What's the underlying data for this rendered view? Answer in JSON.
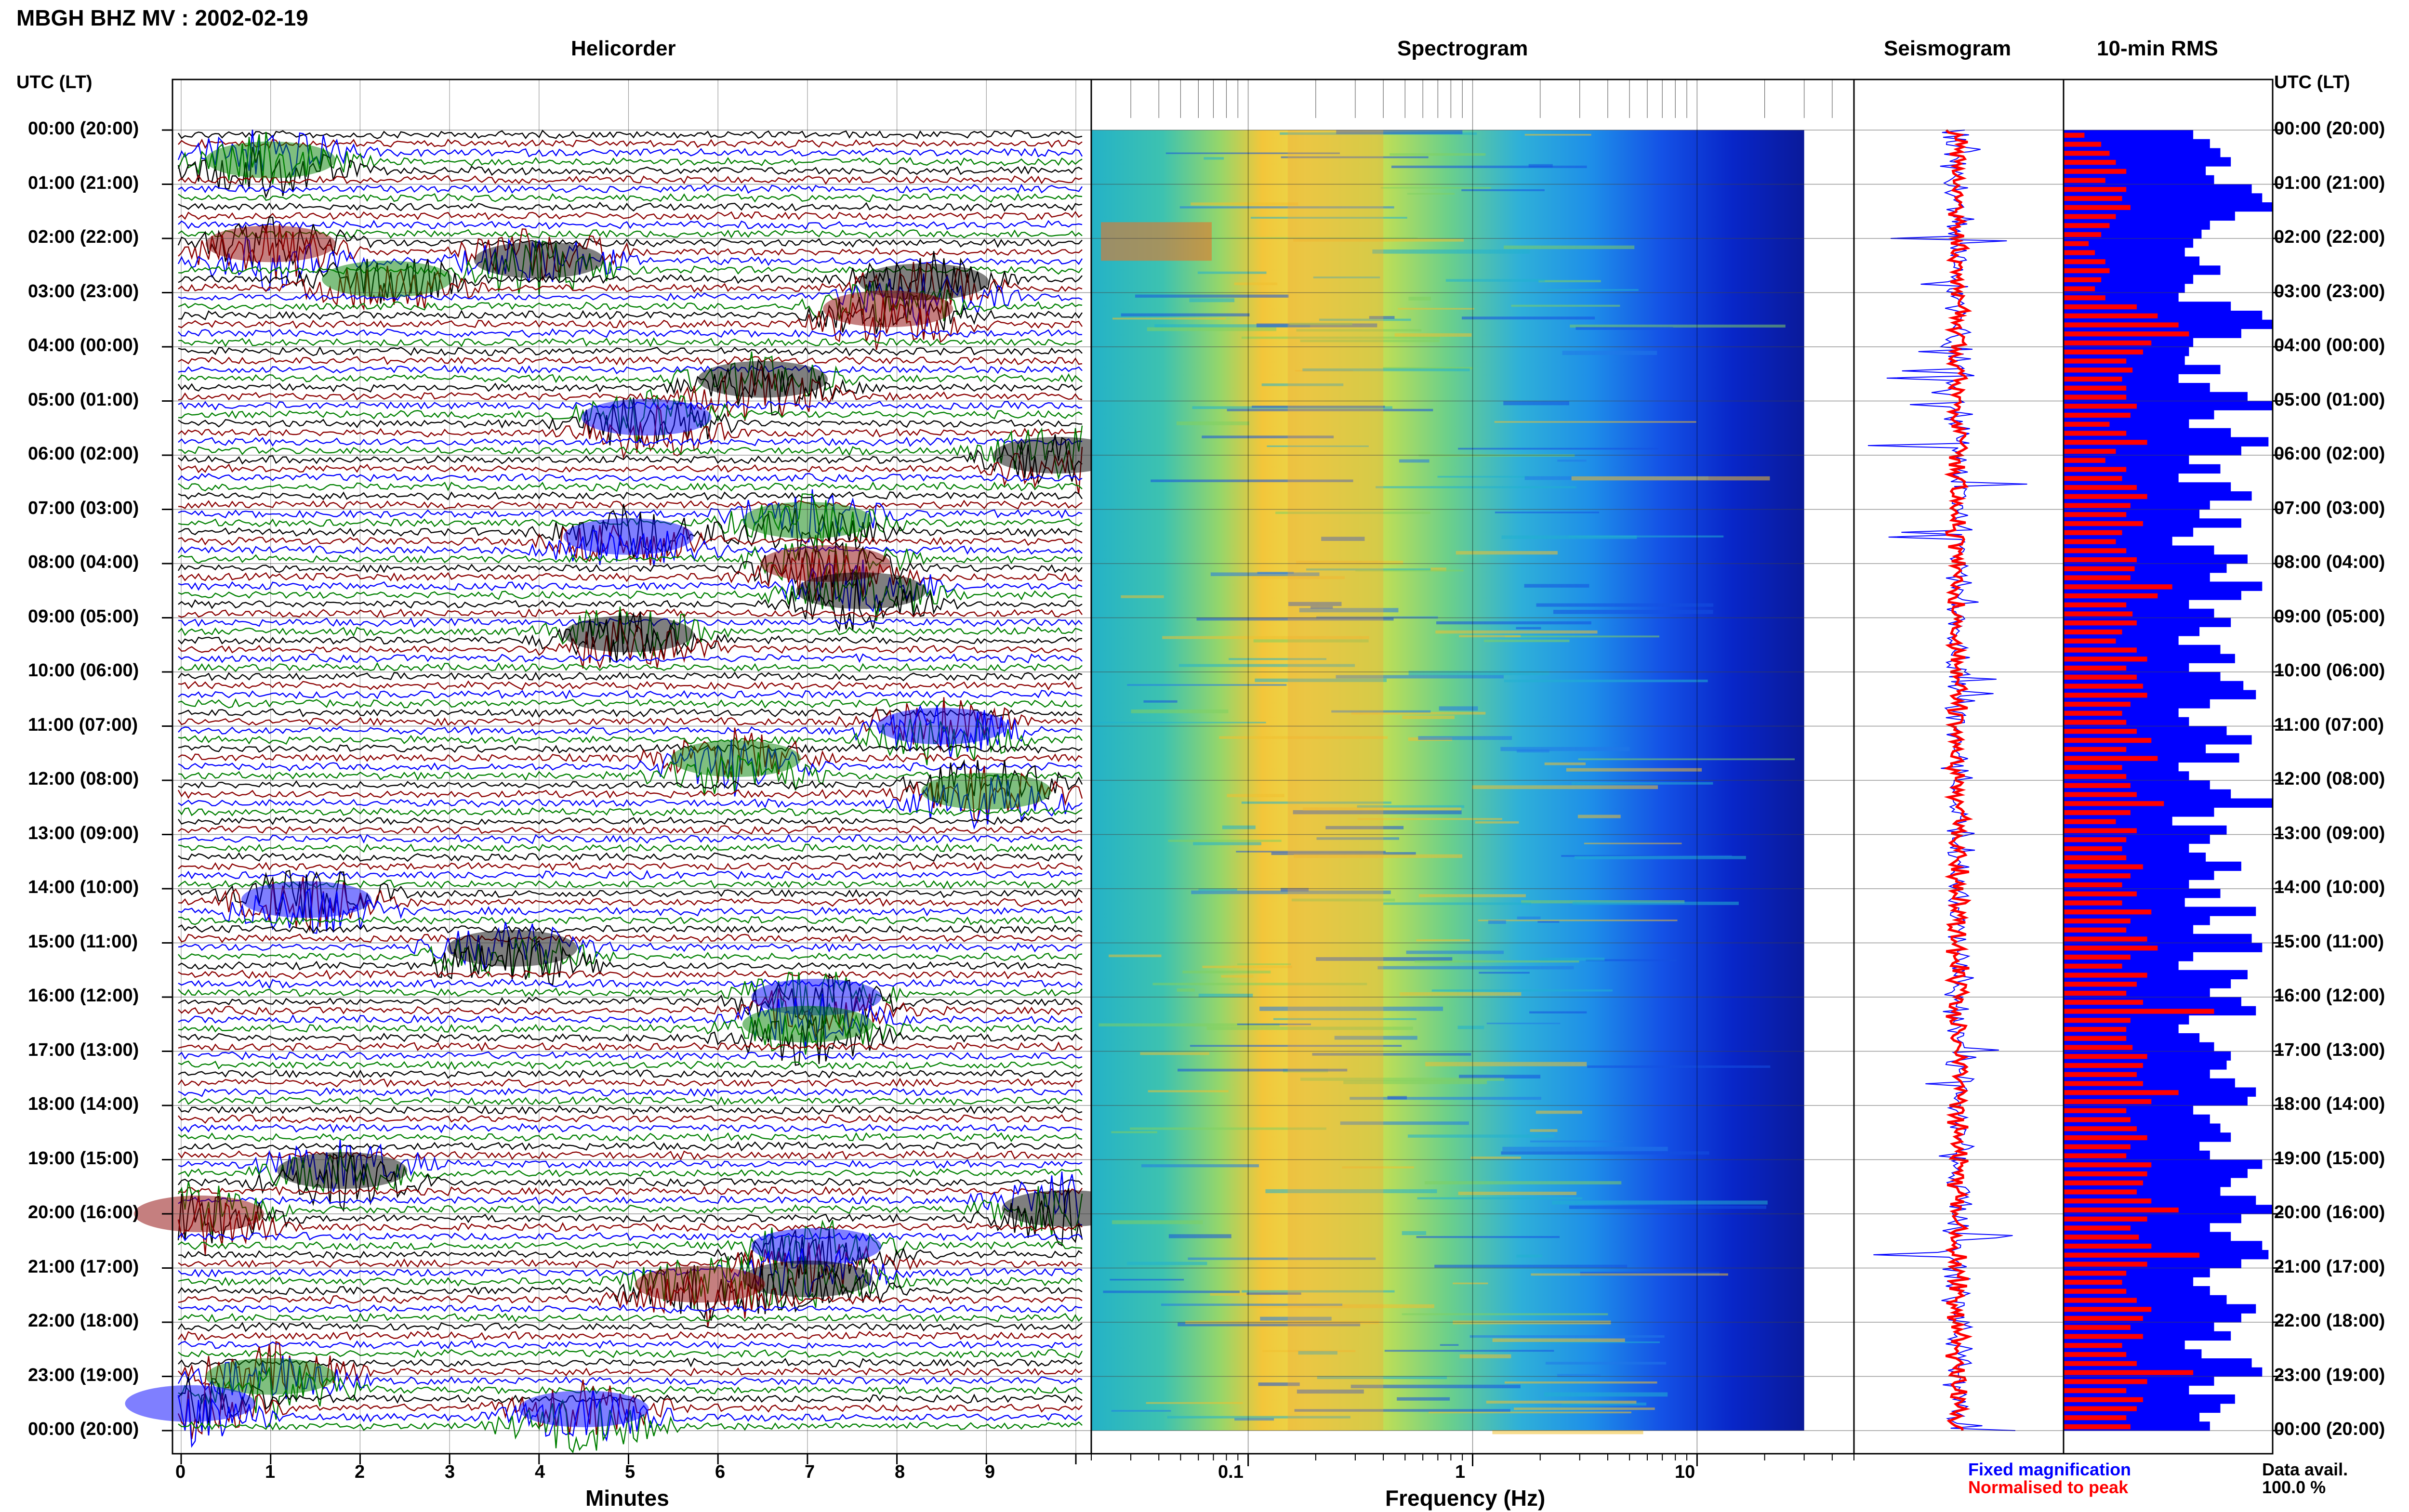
{
  "header": {
    "title": "MBGH BHZ MV : 2002-02-19"
  },
  "time_axis": {
    "label_left": "UTC (LT)",
    "label_right": "UTC (LT)",
    "rows": [
      "00:00 (20:00)",
      "01:00 (21:00)",
      "02:00 (22:00)",
      "03:00 (23:00)",
      "04:00 (00:00)",
      "05:00 (01:00)",
      "06:00 (02:00)",
      "07:00 (03:00)",
      "08:00 (04:00)",
      "09:00 (05:00)",
      "10:00 (06:00)",
      "11:00 (07:00)",
      "12:00 (08:00)",
      "13:00 (09:00)",
      "14:00 (10:00)",
      "15:00 (11:00)",
      "16:00 (12:00)",
      "17:00 (13:00)",
      "18:00 (14:00)",
      "19:00 (15:00)",
      "20:00 (16:00)",
      "21:00 (17:00)",
      "22:00 (18:00)",
      "23:00 (19:00)",
      "00:00 (20:00)"
    ]
  },
  "legend": {
    "fixed": "Fixed magnification",
    "normalised": "Normalised to peak",
    "avail_label": "Data avail.",
    "avail_value": "100.0 %"
  },
  "colors": {
    "fixed": "#0000ff",
    "normalised": "#ff0000",
    "trace_cycle": [
      "#000000",
      "#8b0000",
      "#0000ff",
      "#008000"
    ]
  },
  "chart_data": [
    {
      "type": "line",
      "title": "Helicorder",
      "xlabel": "Minutes",
      "x_ticks": [
        "0",
        "1",
        "2",
        "3",
        "4",
        "5",
        "6",
        "7",
        "8",
        "9"
      ],
      "xlim": [
        0,
        10
      ],
      "trace_count": 144,
      "events": [
        {
          "hour": 0.55,
          "minute": 1.0,
          "color": "green"
        },
        {
          "hour": 2.1,
          "minute": 1.0,
          "color": "darkred"
        },
        {
          "hour": 2.4,
          "minute": 4.0,
          "color": "black"
        },
        {
          "hour": 2.75,
          "minute": 2.3,
          "color": "green"
        },
        {
          "hour": 2.8,
          "minute": 8.3,
          "color": "black"
        },
        {
          "hour": 3.3,
          "minute": 7.9,
          "color": "darkred"
        },
        {
          "hour": 4.6,
          "minute": 6.5,
          "color": "black"
        },
        {
          "hour": 5.3,
          "minute": 5.2,
          "color": "blue"
        },
        {
          "hour": 6.0,
          "minute": 9.8,
          "color": "black"
        },
        {
          "hour": 7.2,
          "minute": 7.0,
          "color": "green"
        },
        {
          "hour": 7.5,
          "minute": 5.0,
          "color": "blue"
        },
        {
          "hour": 8.0,
          "minute": 7.2,
          "color": "darkred"
        },
        {
          "hour": 8.5,
          "minute": 7.6,
          "color": "black"
        },
        {
          "hour": 9.3,
          "minute": 5.0,
          "color": "black"
        },
        {
          "hour": 11.0,
          "minute": 8.5,
          "color": "blue"
        },
        {
          "hour": 11.6,
          "minute": 6.2,
          "color": "green"
        },
        {
          "hour": 12.2,
          "minute": 9.0,
          "color": "green"
        },
        {
          "hour": 14.2,
          "minute": 1.4,
          "color": "blue"
        },
        {
          "hour": 15.1,
          "minute": 3.7,
          "color": "black"
        },
        {
          "hour": 16.0,
          "minute": 7.1,
          "color": "blue"
        },
        {
          "hour": 16.5,
          "minute": 7.0,
          "color": "green"
        },
        {
          "hour": 19.2,
          "minute": 1.8,
          "color": "black"
        },
        {
          "hour": 19.9,
          "minute": 9.9,
          "color": "black"
        },
        {
          "hour": 20.0,
          "minute": 0.2,
          "color": "darkred"
        },
        {
          "hour": 20.6,
          "minute": 7.1,
          "color": "blue"
        },
        {
          "hour": 21.2,
          "minute": 7.0,
          "color": "black"
        },
        {
          "hour": 21.3,
          "minute": 5.8,
          "color": "darkred"
        },
        {
          "hour": 23.0,
          "minute": 1.0,
          "color": "green"
        },
        {
          "hour": 23.5,
          "minute": 0.1,
          "color": "blue"
        },
        {
          "hour": 23.6,
          "minute": 4.5,
          "color": "blue"
        }
      ]
    },
    {
      "type": "heatmap",
      "title": "Spectrogram",
      "xlabel": "Frequency (Hz)",
      "x_ticks": [
        "0.1",
        "1",
        "10"
      ],
      "x_scale": "log",
      "xlim": [
        0.02,
        50
      ],
      "peak_band_hz": [
        0.15,
        0.4
      ],
      "cutoff_hz": 30
    },
    {
      "type": "line",
      "title": "Seismogram",
      "series": [
        {
          "name": "Fixed magnification",
          "color": "#0000ff"
        },
        {
          "name": "Normalised to peak",
          "color": "#ff0000"
        }
      ]
    },
    {
      "type": "bar",
      "title": "10-min RMS",
      "bins": 144,
      "series": [
        {
          "name": "Fixed magnification",
          "color": "#0000ff",
          "values": [
            0.62,
            0.7,
            0.75,
            0.8,
            0.68,
            0.72,
            0.9,
            0.95,
            1.0,
            0.82,
            0.7,
            0.66,
            0.62,
            0.58,
            0.65,
            0.75,
            0.62,
            0.58,
            0.55,
            0.8,
            0.95,
            1.0,
            0.85,
            0.62,
            0.6,
            0.58,
            0.75,
            0.55,
            0.7,
            0.88,
            1.0,
            0.72,
            0.6,
            0.8,
            0.98,
            0.85,
            0.6,
            0.75,
            0.55,
            0.8,
            0.9,
            0.7,
            0.65,
            0.85,
            0.62,
            0.52,
            0.72,
            0.88,
            0.78,
            0.7,
            0.95,
            0.85,
            0.6,
            0.72,
            0.8,
            0.65,
            0.55,
            0.75,
            0.82,
            0.6,
            0.75,
            0.86,
            0.92,
            0.7,
            0.55,
            0.6,
            0.78,
            0.9,
            0.68,
            0.84,
            0.55,
            0.6,
            0.7,
            0.8,
            1.0,
            0.72,
            0.52,
            0.78,
            0.7,
            0.6,
            0.68,
            0.85,
            0.72,
            0.6,
            0.75,
            0.58,
            0.92,
            0.7,
            0.62,
            0.9,
            0.95,
            0.62,
            0.55,
            0.88,
            0.8,
            0.7,
            0.85,
            0.92,
            0.6,
            0.55,
            0.65,
            0.72,
            0.8,
            0.78,
            0.7,
            0.82,
            0.92,
            0.88,
            0.62,
            0.7,
            0.75,
            0.8,
            0.65,
            0.7,
            0.95,
            0.88,
            0.8,
            0.75,
            0.92,
            1.0,
            0.85,
            0.7,
            0.8,
            0.95,
            0.98,
            0.85,
            0.7,
            0.62,
            0.7,
            0.78,
            0.92,
            0.85,
            0.72,
            0.8,
            0.58,
            0.66,
            0.9,
            0.95,
            0.72,
            0.6,
            0.82,
            0.75,
            0.65,
            0.7
          ]
        },
        {
          "name": "Normalised to peak",
          "color": "#ff0000",
          "values": [
            0.1,
            0.18,
            0.22,
            0.25,
            0.3,
            0.2,
            0.3,
            0.28,
            0.32,
            0.25,
            0.22,
            0.18,
            0.12,
            0.15,
            0.2,
            0.22,
            0.18,
            0.15,
            0.2,
            0.35,
            0.45,
            0.55,
            0.6,
            0.42,
            0.38,
            0.3,
            0.33,
            0.28,
            0.3,
            0.3,
            0.35,
            0.32,
            0.22,
            0.3,
            0.4,
            0.25,
            0.2,
            0.3,
            0.28,
            0.35,
            0.4,
            0.32,
            0.3,
            0.38,
            0.28,
            0.25,
            0.3,
            0.35,
            0.34,
            0.32,
            0.52,
            0.45,
            0.3,
            0.33,
            0.35,
            0.28,
            0.25,
            0.35,
            0.4,
            0.3,
            0.35,
            0.38,
            0.4,
            0.32,
            0.28,
            0.3,
            0.35,
            0.42,
            0.3,
            0.45,
            0.28,
            0.3,
            0.32,
            0.35,
            0.48,
            0.32,
            0.25,
            0.35,
            0.3,
            0.28,
            0.3,
            0.38,
            0.32,
            0.28,
            0.35,
            0.28,
            0.42,
            0.32,
            0.3,
            0.4,
            0.45,
            0.32,
            0.28,
            0.4,
            0.35,
            0.3,
            0.38,
            0.72,
            0.32,
            0.3,
            0.3,
            0.33,
            0.4,
            0.38,
            0.35,
            0.38,
            0.55,
            0.42,
            0.3,
            0.32,
            0.35,
            0.4,
            0.32,
            0.3,
            0.42,
            0.4,
            0.38,
            0.35,
            0.42,
            0.55,
            0.4,
            0.32,
            0.36,
            0.42,
            0.65,
            0.4,
            0.3,
            0.28,
            0.3,
            0.35,
            0.42,
            0.38,
            0.32,
            0.38,
            0.28,
            0.3,
            0.35,
            0.62,
            0.4,
            0.3,
            0.38,
            0.35,
            0.3,
            0.32
          ]
        }
      ]
    }
  ]
}
